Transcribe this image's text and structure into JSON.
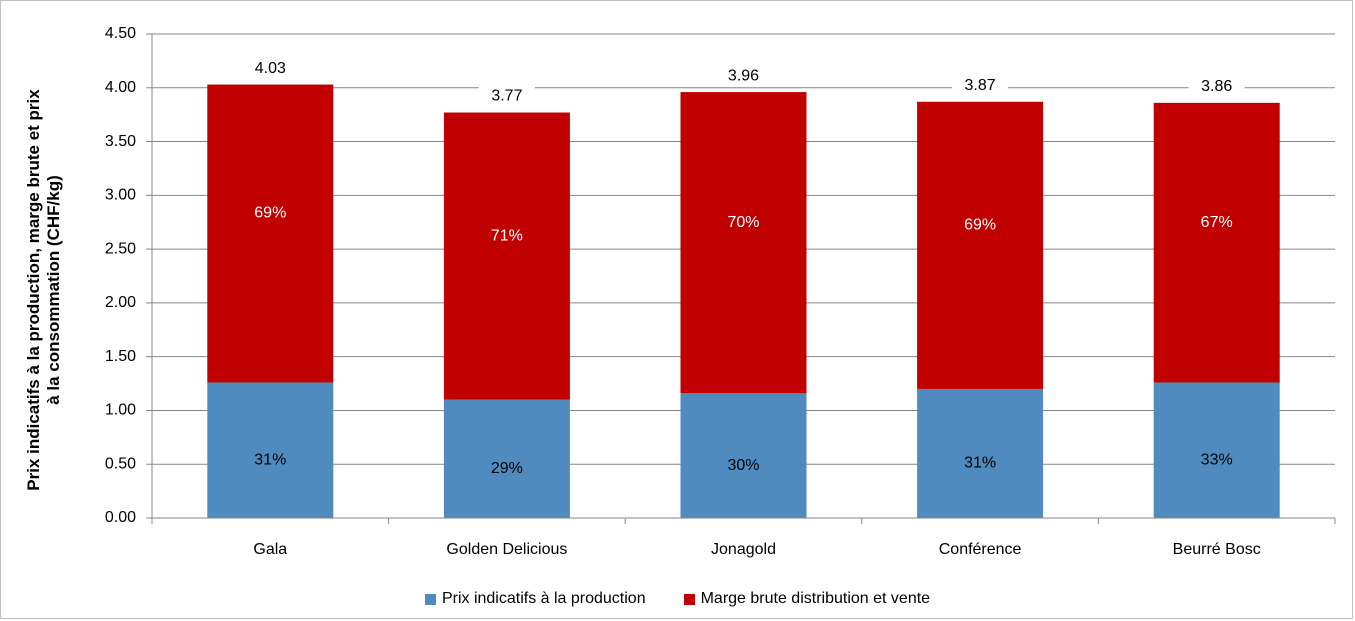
{
  "chart_data": {
    "type": "bar",
    "stacked": true,
    "categories": [
      "Gala",
      "Golden Delicious",
      "Jonagold",
      "Conférence",
      "Beurré Bosc"
    ],
    "series": [
      {
        "name": "Prix indicatifs à la production",
        "color": "#4f8bbe",
        "values": [
          1.26,
          1.1,
          1.16,
          1.2,
          1.26
        ],
        "labels": [
          "31%",
          "29%",
          "30%",
          "31%",
          "33%"
        ]
      },
      {
        "name": "Marge brute distribution et vente",
        "color": "#c00000",
        "values": [
          2.77,
          2.67,
          2.8,
          2.67,
          2.6
        ],
        "labels": [
          "69%",
          "71%",
          "70%",
          "69%",
          "67%"
        ]
      }
    ],
    "totals": [
      "4.03",
      "3.77",
      "3.96",
      "3.87",
      "3.86"
    ],
    "ylabel": "Prix indicatifs à la production, marge brute et prix\nà la consommation  (CHF/kg)",
    "xlabel": "",
    "ylim": [
      0,
      4.5
    ],
    "yticks": [
      "0.00",
      "0.50",
      "1.00",
      "1.50",
      "2.00",
      "2.50",
      "3.00",
      "3.50",
      "4.00",
      "4.50"
    ],
    "grid": true,
    "legend_position": "bottom"
  }
}
